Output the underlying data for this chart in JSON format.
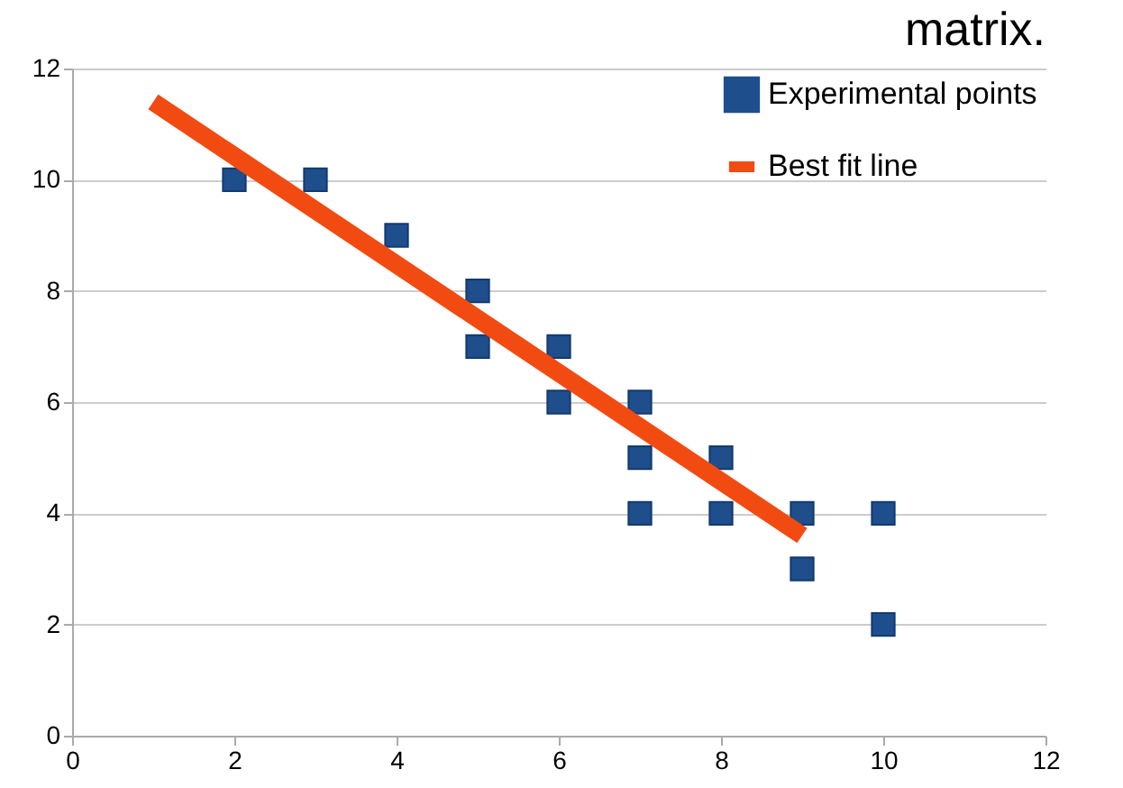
{
  "chart_data": {
    "type": "scatter",
    "annotations": [
      "matrix."
    ],
    "xlim": [
      0,
      12
    ],
    "xticks": [
      0,
      2,
      4,
      6,
      8,
      10,
      12
    ],
    "ylim": [
      0,
      12
    ],
    "yticks": [
      0,
      2,
      4,
      6,
      8,
      10,
      12
    ],
    "grid": "y",
    "legend": "top right",
    "marker": "square",
    "series": [
      {
        "name": "Experimental points",
        "color": "#1f4e8c",
        "x": [
          2,
          3,
          4,
          5,
          5,
          6,
          6,
          7,
          7,
          7,
          8,
          8,
          9,
          9,
          10,
          10
        ],
        "values": [
          10,
          10,
          9,
          8,
          7,
          7,
          6,
          6,
          5,
          4,
          5,
          4,
          4,
          3,
          4,
          2
        ]
      },
      {
        "name": "Best fit line",
        "type": "line",
        "marker": "none",
        "color": "#f24b12",
        "x": [
          1,
          9
        ],
        "values": [
          11.4,
          3.6
        ]
      }
    ]
  }
}
